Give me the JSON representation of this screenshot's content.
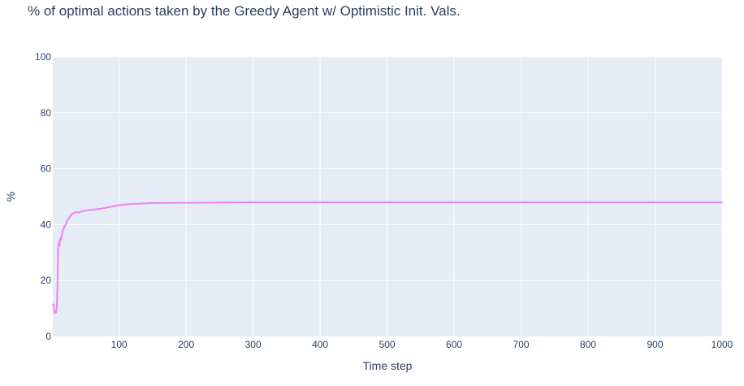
{
  "chart_data": {
    "type": "line",
    "title": "% of optimal actions taken by the Greedy Agent w/ Optimistic Init. Vals.",
    "xlabel": "Time step",
    "ylabel": "%",
    "xlim": [
      1,
      1000
    ],
    "ylim": [
      0,
      100
    ],
    "x_ticks": [
      100,
      200,
      300,
      400,
      500,
      600,
      700,
      800,
      900,
      1000
    ],
    "y_ticks": [
      0,
      20,
      40,
      60,
      80,
      100
    ],
    "grid": true,
    "colors": {
      "plot_background": "#E5ECF6",
      "grid": "#ffffff",
      "line": "#EE82EE"
    },
    "series": [
      {
        "x": [
          1,
          2,
          3,
          4,
          5,
          6,
          7,
          8,
          9,
          10,
          11,
          12,
          13,
          14,
          15,
          16,
          18,
          20,
          22,
          24,
          26,
          28,
          30,
          33,
          36,
          40,
          45,
          50,
          55,
          60,
          65,
          70,
          80,
          90,
          100,
          110,
          120,
          130,
          140,
          150,
          200,
          250,
          300,
          400,
          500,
          600,
          700,
          800,
          900,
          1000
        ],
        "y": [
          11.5,
          11.5,
          9.5,
          8.3,
          9.0,
          8.6,
          10.5,
          18.0,
          32.0,
          33.5,
          32.5,
          35.0,
          34.5,
          36.0,
          36.5,
          38.0,
          39.0,
          40.0,
          41.0,
          42.0,
          42.5,
          43.5,
          43.8,
          44.2,
          44.5,
          44.3,
          44.8,
          45.0,
          45.2,
          45.3,
          45.5,
          45.6,
          46.0,
          46.5,
          47.0,
          47.2,
          47.4,
          47.5,
          47.6,
          47.7,
          47.8,
          47.9,
          48.0,
          48.0,
          48.0,
          48.0,
          48.0,
          48.0,
          48.0,
          48.0
        ]
      }
    ]
  }
}
